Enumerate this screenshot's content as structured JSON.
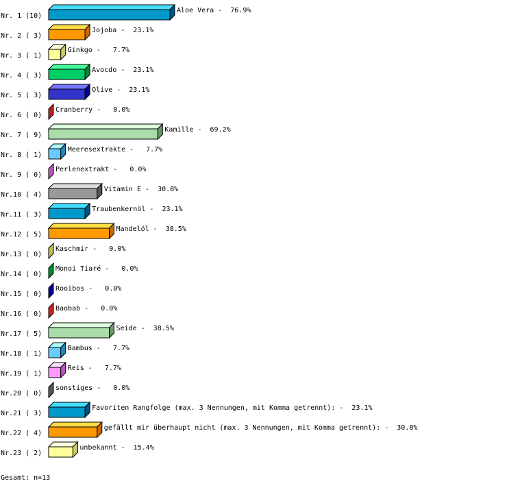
{
  "chart_data": {
    "type": "bar",
    "orientation": "horizontal",
    "style": "3d",
    "total_label": "Gesamt: n=13",
    "rows": [
      {
        "rank": "Nr. 1",
        "count": 10,
        "name": "Aloe Vera",
        "percent": "76.9%",
        "colors": {
          "front": "#0099cc",
          "top": "#44ddff",
          "side": "#005588"
        }
      },
      {
        "rank": "Nr. 2",
        "count": 3,
        "name": "Jojoba",
        "percent": "23.1%",
        "colors": {
          "front": "#ff9900",
          "top": "#ffdd44",
          "side": "#cc6600"
        }
      },
      {
        "rank": "Nr. 3",
        "count": 1,
        "name": "Ginkgo",
        "percent": "7.7%",
        "colors": {
          "front": "#ffff99",
          "top": "#ffffdd",
          "side": "#cccc66"
        }
      },
      {
        "rank": "Nr. 4",
        "count": 3,
        "name": "Avocdo",
        "percent": "23.1%",
        "colors": {
          "front": "#00cc66",
          "top": "#44ff99",
          "side": "#008833"
        }
      },
      {
        "rank": "Nr. 5",
        "count": 3,
        "name": "Olive",
        "percent": "23.1%",
        "colors": {
          "front": "#3333cc",
          "top": "#7777ff",
          "side": "#000088"
        }
      },
      {
        "rank": "Nr. 6",
        "count": 0,
        "name": "Cranberry",
        "percent": "0.0%",
        "colors": {
          "front": "#cc3333",
          "top": "#ff6666",
          "side": "#bb2222"
        }
      },
      {
        "rank": "Nr. 7",
        "count": 9,
        "name": "Kamille",
        "percent": "69.2%",
        "colors": {
          "front": "#aaddaa",
          "top": "#ddffdd",
          "side": "#669966"
        }
      },
      {
        "rank": "Nr. 8",
        "count": 1,
        "name": "Meeresextrakte",
        "percent": "7.7%",
        "colors": {
          "front": "#66ccff",
          "top": "#aaffff",
          "side": "#2288bb"
        }
      },
      {
        "rank": "Nr. 9",
        "count": 0,
        "name": "Perlenextrakt",
        "percent": "0.0%",
        "colors": {
          "front": "#cc66cc",
          "top": "#ffaaff",
          "side": "#bb55bb"
        }
      },
      {
        "rank": "Nr.10",
        "count": 4,
        "name": "Vitamin E",
        "percent": "30.8%",
        "colors": {
          "front": "#999999",
          "top": "#dddddd",
          "side": "#555555"
        }
      },
      {
        "rank": "Nr.11",
        "count": 3,
        "name": "Traubenkernöl",
        "percent": "23.1%",
        "colors": {
          "front": "#0099cc",
          "top": "#44ddff",
          "side": "#005588"
        }
      },
      {
        "rank": "Nr.12",
        "count": 5,
        "name": "Mandelöl",
        "percent": "38.5%",
        "colors": {
          "front": "#ff9900",
          "top": "#ffdd44",
          "side": "#cc6600"
        }
      },
      {
        "rank": "Nr.13",
        "count": 0,
        "name": "Kaschmir",
        "percent": "0.0%",
        "colors": {
          "front": "#cccc66",
          "top": "#eeee99",
          "side": "#bbbb55"
        }
      },
      {
        "rank": "Nr.14",
        "count": 0,
        "name": "Monoi Tiaré",
        "percent": "0.0%",
        "colors": {
          "front": "#008833",
          "top": "#44cc66",
          "side": "#008833"
        }
      },
      {
        "rank": "Nr.15",
        "count": 0,
        "name": "Rooibos",
        "percent": "0.0%",
        "colors": {
          "front": "#000099",
          "top": "#3333cc",
          "side": "#000099"
        }
      },
      {
        "rank": "Nr.16",
        "count": 0,
        "name": "Baobab",
        "percent": "0.0%",
        "colors": {
          "front": "#cc3333",
          "top": "#ff6666",
          "side": "#cc2222"
        }
      },
      {
        "rank": "Nr.17",
        "count": 5,
        "name": "Seide",
        "percent": "38.5%",
        "colors": {
          "front": "#aaddaa",
          "top": "#ddffdd",
          "side": "#669966"
        }
      },
      {
        "rank": "Nr.18",
        "count": 1,
        "name": "Bambus",
        "percent": "7.7%",
        "colors": {
          "front": "#66ccff",
          "top": "#aaffff",
          "side": "#2288bb"
        }
      },
      {
        "rank": "Nr.19",
        "count": 1,
        "name": "Reis",
        "percent": "7.7%",
        "colors": {
          "front": "#ff99ff",
          "top": "#ffddff",
          "side": "#bb55bb"
        }
      },
      {
        "rank": "Nr.20",
        "count": 0,
        "name": "sonstiges",
        "percent": "0.0%",
        "colors": {
          "front": "#666666",
          "top": "#999999",
          "side": "#555555"
        }
      },
      {
        "rank": "Nr.21",
        "count": 3,
        "name": "Favoriten Rangfolge (max. 3 Nennungen, mit Komma getrennt):",
        "percent": "23.1%",
        "colors": {
          "front": "#0099cc",
          "top": "#44ddff",
          "side": "#005588"
        }
      },
      {
        "rank": "Nr.22",
        "count": 4,
        "name": "gefällt mir überhaupt nicht (max. 3 Nennungen, mit Komma getrennt):",
        "percent": "30.8%",
        "colors": {
          "front": "#ff9900",
          "top": "#ffdd44",
          "side": "#cc6600"
        }
      },
      {
        "rank": "Nr.23",
        "count": 2,
        "name": "unbekannt",
        "percent": "15.4%",
        "colors": {
          "front": "#ffff99",
          "top": "#ffffdd",
          "side": "#cccc66"
        }
      }
    ]
  }
}
